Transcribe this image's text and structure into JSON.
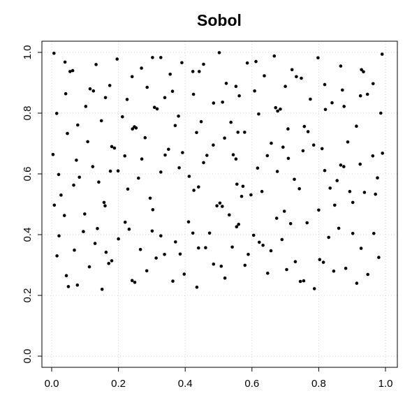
{
  "chart_data": {
    "type": "scatter",
    "title": "Sobol",
    "xlabel": "",
    "ylabel": "",
    "xlim": [
      0,
      1
    ],
    "ylim": [
      0,
      1
    ],
    "x_ticks": [
      "0.0",
      "0.2",
      "0.4",
      "0.6",
      "0.8",
      "1.0"
    ],
    "y_ticks": [
      "0.0",
      "0.2",
      "0.4",
      "0.6",
      "0.8",
      "1.0"
    ],
    "grid": true,
    "point_color": "#000000",
    "points": [
      [
        0.007,
        0.997
      ],
      [
        0.04,
        0.968
      ],
      [
        0.055,
        0.937
      ],
      [
        0.063,
        0.94
      ],
      [
        0.042,
        0.864
      ],
      [
        0.015,
        0.799
      ],
      [
        0.115,
        0.88
      ],
      [
        0.125,
        0.873
      ],
      [
        0.133,
        0.96
      ],
      [
        0.174,
        0.891
      ],
      [
        0.196,
        0.978
      ],
      [
        0.241,
        0.92
      ],
      [
        0.269,
        0.948
      ],
      [
        0.286,
        0.885
      ],
      [
        0.302,
        0.983
      ],
      [
        0.327,
        0.983
      ],
      [
        0.355,
        0.928
      ],
      [
        0.39,
        0.966
      ],
      [
        0.423,
        0.937
      ],
      [
        0.442,
        0.937
      ],
      [
        0.455,
        0.961
      ],
      [
        0.502,
        0.999
      ],
      [
        0.523,
        0.898
      ],
      [
        0.552,
        0.888
      ],
      [
        0.586,
        0.965
      ],
      [
        0.612,
        0.97
      ],
      [
        0.637,
        0.923
      ],
      [
        0.667,
        0.988
      ],
      [
        0.7,
        0.888
      ],
      [
        0.72,
        0.943
      ],
      [
        0.733,
        0.92
      ],
      [
        0.748,
        0.915
      ],
      [
        0.798,
        0.982
      ],
      [
        0.818,
        0.894
      ],
      [
        0.866,
        0.955
      ],
      [
        0.871,
        0.876
      ],
      [
        0.928,
        0.943
      ],
      [
        0.934,
        0.936
      ],
      [
        0.946,
        0.862
      ],
      [
        0.963,
        0.897
      ],
      [
        0.99,
        0.994
      ],
      [
        0.102,
        0.822
      ],
      [
        0.161,
        0.851
      ],
      [
        0.078,
        0.761
      ],
      [
        0.047,
        0.733
      ],
      [
        0.149,
        0.775
      ],
      [
        0.108,
        0.706
      ],
      [
        0.212,
        0.788
      ],
      [
        0.226,
        0.845
      ],
      [
        0.242,
        0.748
      ],
      [
        0.248,
        0.755
      ],
      [
        0.253,
        0.751
      ],
      [
        0.28,
        0.719
      ],
      [
        0.308,
        0.819
      ],
      [
        0.316,
        0.814
      ],
      [
        0.339,
        0.851
      ],
      [
        0.362,
        0.872
      ],
      [
        0.37,
        0.759
      ],
      [
        0.38,
        0.79
      ],
      [
        0.425,
        0.862
      ],
      [
        0.434,
        0.736
      ],
      [
        0.448,
        0.772
      ],
      [
        0.485,
        0.833
      ],
      [
        0.512,
        0.836
      ],
      [
        0.537,
        0.77
      ],
      [
        0.558,
        0.737
      ],
      [
        0.578,
        0.737
      ],
      [
        0.562,
        0.857
      ],
      [
        0.608,
        0.873
      ],
      [
        0.62,
        0.797
      ],
      [
        0.671,
        0.818
      ],
      [
        0.677,
        0.807
      ],
      [
        0.685,
        0.813
      ],
      [
        0.708,
        0.748
      ],
      [
        0.757,
        0.756
      ],
      [
        0.768,
        0.739
      ],
      [
        0.775,
        0.846
      ],
      [
        0.82,
        0.812
      ],
      [
        0.84,
        0.834
      ],
      [
        0.876,
        0.822
      ],
      [
        0.887,
        0.705
      ],
      [
        0.913,
        0.757
      ],
      [
        0.925,
        0.857
      ],
      [
        0.986,
        0.8
      ],
      [
        0.004,
        0.664
      ],
      [
        0.021,
        0.598
      ],
      [
        0.028,
        0.53
      ],
      [
        0.038,
        0.463
      ],
      [
        0.008,
        0.497
      ],
      [
        0.074,
        0.645
      ],
      [
        0.066,
        0.563
      ],
      [
        0.083,
        0.589
      ],
      [
        0.099,
        0.468
      ],
      [
        0.123,
        0.624
      ],
      [
        0.141,
        0.573
      ],
      [
        0.157,
        0.506
      ],
      [
        0.16,
        0.495
      ],
      [
        0.176,
        0.609
      ],
      [
        0.18,
        0.69
      ],
      [
        0.188,
        0.685
      ],
      [
        0.199,
        0.61
      ],
      [
        0.219,
        0.659
      ],
      [
        0.228,
        0.55
      ],
      [
        0.26,
        0.586
      ],
      [
        0.27,
        0.649
      ],
      [
        0.295,
        0.52
      ],
      [
        0.303,
        0.482
      ],
      [
        0.327,
        0.606
      ],
      [
        0.34,
        0.662
      ],
      [
        0.35,
        0.681
      ],
      [
        0.382,
        0.62
      ],
      [
        0.392,
        0.67
      ],
      [
        0.412,
        0.592
      ],
      [
        0.426,
        0.546
      ],
      [
        0.44,
        0.557
      ],
      [
        0.455,
        0.637
      ],
      [
        0.465,
        0.661
      ],
      [
        0.484,
        0.695
      ],
      [
        0.495,
        0.495
      ],
      [
        0.504,
        0.504
      ],
      [
        0.511,
        0.493
      ],
      [
        0.518,
        0.718
      ],
      [
        0.544,
        0.663
      ],
      [
        0.552,
        0.649
      ],
      [
        0.555,
        0.566
      ],
      [
        0.573,
        0.559
      ],
      [
        0.569,
        0.526
      ],
      [
        0.597,
        0.531
      ],
      [
        0.617,
        0.619
      ],
      [
        0.63,
        0.542
      ],
      [
        0.646,
        0.66
      ],
      [
        0.658,
        0.701
      ],
      [
        0.676,
        0.608
      ],
      [
        0.693,
        0.688
      ],
      [
        0.697,
        0.477
      ],
      [
        0.709,
        0.651
      ],
      [
        0.727,
        0.582
      ],
      [
        0.742,
        0.551
      ],
      [
        0.753,
        0.676
      ],
      [
        0.785,
        0.695
      ],
      [
        0.8,
        0.481
      ],
      [
        0.81,
        0.683
      ],
      [
        0.818,
        0.611
      ],
      [
        0.834,
        0.553
      ],
      [
        0.848,
        0.497
      ],
      [
        0.855,
        0.578
      ],
      [
        0.866,
        0.629
      ],
      [
        0.875,
        0.624
      ],
      [
        0.893,
        0.542
      ],
      [
        0.902,
        0.506
      ],
      [
        0.924,
        0.632
      ],
      [
        0.937,
        0.539
      ],
      [
        0.962,
        0.659
      ],
      [
        0.97,
        0.533
      ],
      [
        0.976,
        0.587
      ],
      [
        0.991,
        0.668
      ],
      [
        0.016,
        0.33
      ],
      [
        0.022,
        0.396
      ],
      [
        0.044,
        0.265
      ],
      [
        0.05,
        0.229
      ],
      [
        0.077,
        0.234
      ],
      [
        0.068,
        0.349
      ],
      [
        0.095,
        0.41
      ],
      [
        0.113,
        0.294
      ],
      [
        0.13,
        0.371
      ],
      [
        0.137,
        0.42
      ],
      [
        0.151,
        0.22
      ],
      [
        0.163,
        0.342
      ],
      [
        0.171,
        0.305
      ],
      [
        0.18,
        0.314
      ],
      [
        0.2,
        0.386
      ],
      [
        0.22,
        0.441
      ],
      [
        0.232,
        0.418
      ],
      [
        0.241,
        0.249
      ],
      [
        0.249,
        0.243
      ],
      [
        0.266,
        0.351
      ],
      [
        0.285,
        0.281
      ],
      [
        0.301,
        0.412
      ],
      [
        0.313,
        0.323
      ],
      [
        0.327,
        0.396
      ],
      [
        0.338,
        0.335
      ],
      [
        0.363,
        0.247
      ],
      [
        0.371,
        0.376
      ],
      [
        0.385,
        0.336
      ],
      [
        0.397,
        0.27
      ],
      [
        0.41,
        0.442
      ],
      [
        0.423,
        0.405
      ],
      [
        0.435,
        0.227
      ],
      [
        0.44,
        0.356
      ],
      [
        0.461,
        0.357
      ],
      [
        0.473,
        0.405
      ],
      [
        0.485,
        0.303
      ],
      [
        0.508,
        0.296
      ],
      [
        0.519,
        0.257
      ],
      [
        0.532,
        0.465
      ],
      [
        0.541,
        0.359
      ],
      [
        0.554,
        0.426
      ],
      [
        0.56,
        0.434
      ],
      [
        0.579,
        0.299
      ],
      [
        0.589,
        0.335
      ],
      [
        0.605,
        0.398
      ],
      [
        0.622,
        0.375
      ],
      [
        0.633,
        0.365
      ],
      [
        0.647,
        0.273
      ],
      [
        0.657,
        0.347
      ],
      [
        0.674,
        0.454
      ],
      [
        0.69,
        0.384
      ],
      [
        0.704,
        0.285
      ],
      [
        0.716,
        0.436
      ],
      [
        0.73,
        0.311
      ],
      [
        0.745,
        0.246
      ],
      [
        0.755,
        0.248
      ],
      [
        0.765,
        0.439
      ],
      [
        0.787,
        0.222
      ],
      [
        0.803,
        0.318
      ],
      [
        0.814,
        0.309
      ],
      [
        0.83,
        0.391
      ],
      [
        0.845,
        0.28
      ],
      [
        0.86,
        0.421
      ],
      [
        0.881,
        0.289
      ],
      [
        0.902,
        0.404
      ],
      [
        0.914,
        0.24
      ],
      [
        0.927,
        0.355
      ],
      [
        0.947,
        0.269
      ],
      [
        0.965,
        0.404
      ],
      [
        0.98,
        0.325
      ]
    ]
  }
}
